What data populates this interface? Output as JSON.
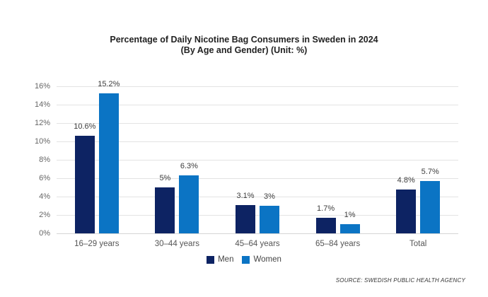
{
  "title": {
    "line1": "Percentage of Daily Nicotine Bag Consumers in Sweden in 2024",
    "line2": "(By Age and Gender) (Unit: %)"
  },
  "source": "SOURCE: SWEDISH PUBLIC HEALTH AGENCY",
  "legend": [
    {
      "label": "Men",
      "color": "#0d2363"
    },
    {
      "label": "Women",
      "color": "#0b74c4"
    }
  ],
  "colors": {
    "men": "#0d2363",
    "women": "#0b74c4",
    "gridline": "#e3e3e3",
    "axis_text": "#666666",
    "value_text": "#3d3d3d",
    "background": "#ffffff"
  },
  "chart_data": {
    "type": "bar",
    "title": "Percentage of Daily Nicotine Bag Consumers in Sweden in 2024 (By Age and Gender) (Unit: %)",
    "categories": [
      "16–29 years",
      "30–44 years",
      "45–64 years",
      "65–84 years",
      "Total"
    ],
    "series": [
      {
        "name": "Men",
        "color": "#0d2363",
        "values": [
          10.6,
          5,
          3.1,
          1.7,
          4.8
        ],
        "labels": [
          "10.6%",
          "5%",
          "3.1%",
          "1.7%",
          "4.8%"
        ]
      },
      {
        "name": "Women",
        "color": "#0b74c4",
        "values": [
          15.2,
          6.3,
          3,
          1,
          5.7
        ],
        "labels": [
          "15.2%",
          "6.3%",
          "3%",
          "1%",
          "5.7%"
        ]
      }
    ],
    "xlabel": "",
    "ylabel": "",
    "ylim": [
      0,
      16
    ],
    "ytick_step": 2,
    "ytick_labels": [
      "0%",
      "2%",
      "4%",
      "6%",
      "8%",
      "10%",
      "12%",
      "14%",
      "16%"
    ],
    "grid": true,
    "legend_position": "bottom-center"
  }
}
